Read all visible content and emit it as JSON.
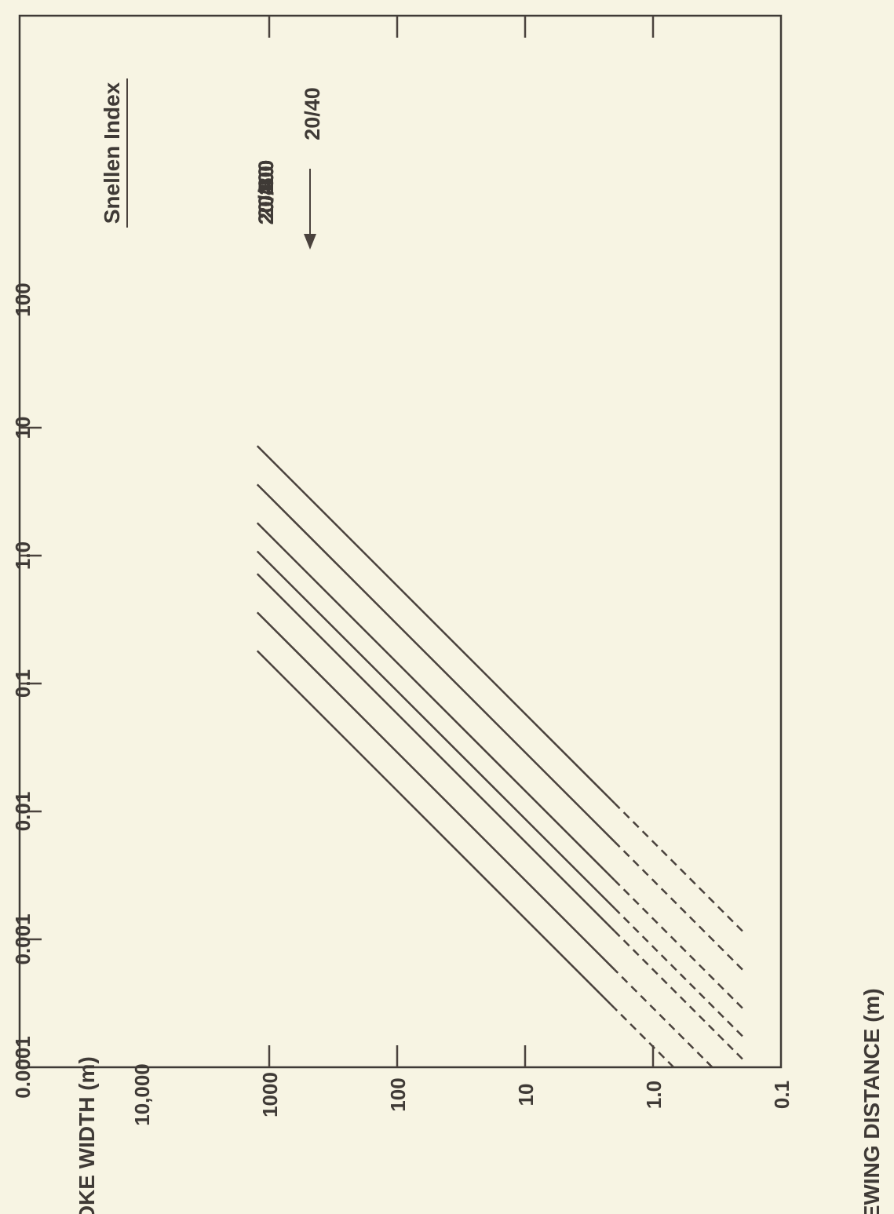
{
  "chart_data": {
    "type": "line",
    "title": "",
    "xlabel": "STROKE WIDTH (m)",
    "ylabel": "VIEWING DISTANCE (m)",
    "x_scale": "log",
    "y_scale": "log",
    "xlim": [
      0.0001,
      100
    ],
    "ylim": [
      0.1,
      10000
    ],
    "x_ticks": [
      0.0001,
      0.001,
      0.01,
      0.1,
      1.0,
      10,
      100
    ],
    "x_tick_labels": [
      "0.0001",
      "0.001",
      "0.01",
      "0.1",
      "1.0",
      "10",
      "100"
    ],
    "y_ticks": [
      0.1,
      1.0,
      10,
      100,
      1000,
      10000
    ],
    "y_tick_labels": [
      "0.1",
      "1.0",
      "10",
      "100",
      "1000",
      "10,000"
    ],
    "grid": false,
    "legend": {
      "title": "Snellen Index",
      "placement": "top-right"
    },
    "line_color": "#4a423d",
    "series": [
      {
        "name": "20/400",
        "x": [
          0.00116,
          0.0116,
          7.2
        ],
        "y": [
          0.2,
          2,
          1240
        ],
        "solid_from": 1
      },
      {
        "name": "20/200",
        "x": [
          0.00058,
          0.0058,
          3.6
        ],
        "y": [
          0.2,
          2,
          1240
        ],
        "solid_from": 1
      },
      {
        "name": "20/100",
        "x": [
          0.00029,
          0.0029,
          1.8
        ],
        "y": [
          0.2,
          2,
          1240
        ],
        "solid_from": 1
      },
      {
        "name": "20/60",
        "x": [
          0.000175,
          0.00175,
          1.08
        ],
        "y": [
          0.2,
          2,
          1240
        ],
        "solid_from": 1
      },
      {
        "name": "20/40",
        "x": [
          0.000116,
          0.00116,
          0.72
        ],
        "y": [
          0.2,
          2,
          1240
        ],
        "solid_from": 1
      },
      {
        "name": "20/20",
        "x": [
          0.0001,
          0.00058,
          0.36
        ],
        "y": [
          0.344,
          2,
          1240
        ],
        "solid_from": 1
      },
      {
        "name": "20/10",
        "x": [
          0.0001,
          0.00029,
          0.18
        ],
        "y": [
          0.69,
          2,
          1240
        ],
        "solid_from": 1
      }
    ]
  }
}
